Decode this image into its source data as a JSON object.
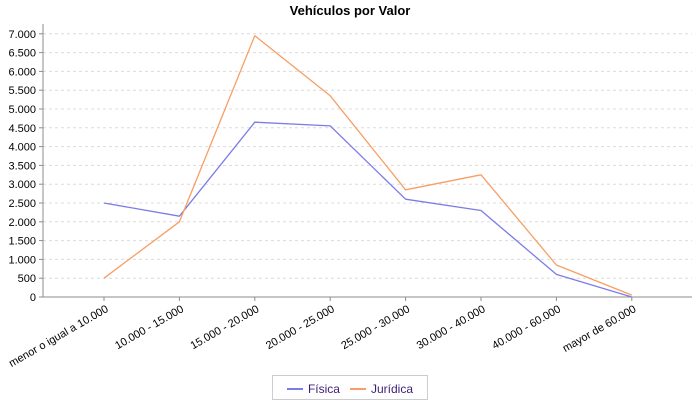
{
  "chart_data": {
    "type": "line",
    "title": "Vehículos por Valor",
    "xlabel": "",
    "ylabel": "",
    "categories": [
      "menor o igual a 10.000",
      "10.000 - 15.000",
      "15.000 - 20.000",
      "20.000 - 25.000",
      "25.000 - 30.000",
      "30.000 - 40.000",
      "40.000 - 60.000",
      "mayor de 60.000"
    ],
    "series": [
      {
        "name": "Física",
        "color": "#7C7CE8",
        "values": [
          2500,
          2150,
          4650,
          4550,
          2600,
          2300,
          600,
          0
        ]
      },
      {
        "name": "Jurídica",
        "color": "#F89E64",
        "values": [
          500,
          2000,
          6950,
          5350,
          2850,
          3250,
          850,
          50
        ]
      }
    ],
    "ylim": [
      0,
      7000
    ],
    "ytick_step": 500,
    "ytick_labels": [
      "0",
      "500",
      "1.000",
      "1.500",
      "2.000",
      "2.500",
      "3.000",
      "3.500",
      "4.000",
      "4.500",
      "5.000",
      "5.500",
      "6.000",
      "6.500",
      "7.000"
    ],
    "grid": "horizontal-dashed",
    "legend_position": "bottom",
    "colors": {
      "background": "#FFFFFF",
      "grid": "#DCDCDC",
      "axis": "#8C8C8C",
      "tick": "#8C8C8C",
      "title_text": "#000000",
      "tick_label_text": "#000000",
      "legend_text": "#3D1E75",
      "legend_border": "#CCCCCC"
    }
  }
}
